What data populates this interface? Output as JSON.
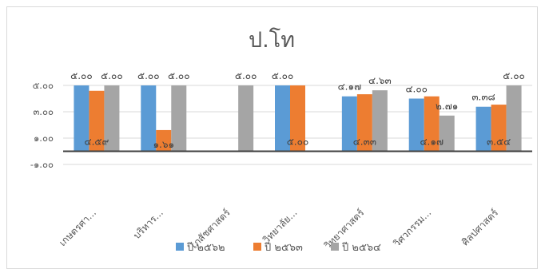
{
  "chart_data": {
    "type": "bar",
    "title": "ป.โท",
    "categories": [
      "เกษตรศา...",
      "บริหาร...",
      "เภสัชศาสตร์",
      "วิทยาลัย...",
      "วิทยาศาสตร์",
      "วิศวกรรม...",
      "ศิลปศาสตร์"
    ],
    "series": [
      {
        "name": "ปี ๒๕๖๒",
        "color": "#5b9bd5",
        "values": [
          5.0,
          5.0,
          null,
          5.0,
          4.17,
          4.0,
          3.38
        ]
      },
      {
        "name": "ปี ๒๕๖๓",
        "color": "#ed7d31",
        "values": [
          4.59,
          1.61,
          null,
          5.0,
          4.33,
          4.17,
          3.54
        ]
      },
      {
        "name": "ปี ๒๕๖๔",
        "color": "#a5a5a5",
        "values": [
          5.0,
          5.0,
          5.0,
          null,
          4.63,
          2.71,
          5.0
        ]
      }
    ],
    "data_labels": [
      [
        "๕.๐๐",
        "๕.๐๐",
        null,
        "๕.๐๐",
        "๔.๑๗",
        "๔.๐๐",
        "๓.๓๘"
      ],
      [
        "๔.๕๙",
        "๑.๖๑",
        null,
        "๕.๐๐",
        "๔.๓๓",
        "๔.๑๗",
        "๓.๕๔"
      ],
      [
        "๕.๐๐",
        "๕.๐๐",
        "๕.๐๐",
        null,
        "๔.๖๓",
        "๒.๗๑",
        "๕.๐๐"
      ]
    ],
    "y_ticks": [
      5,
      3,
      1,
      -1
    ],
    "y_tick_labels": [
      "๕.๐๐",
      "๓.๐๐",
      "๑.๐๐",
      "-๑.๐๐"
    ],
    "ylim": [
      -1,
      5
    ],
    "grid": true,
    "legend_position": "bottom"
  }
}
